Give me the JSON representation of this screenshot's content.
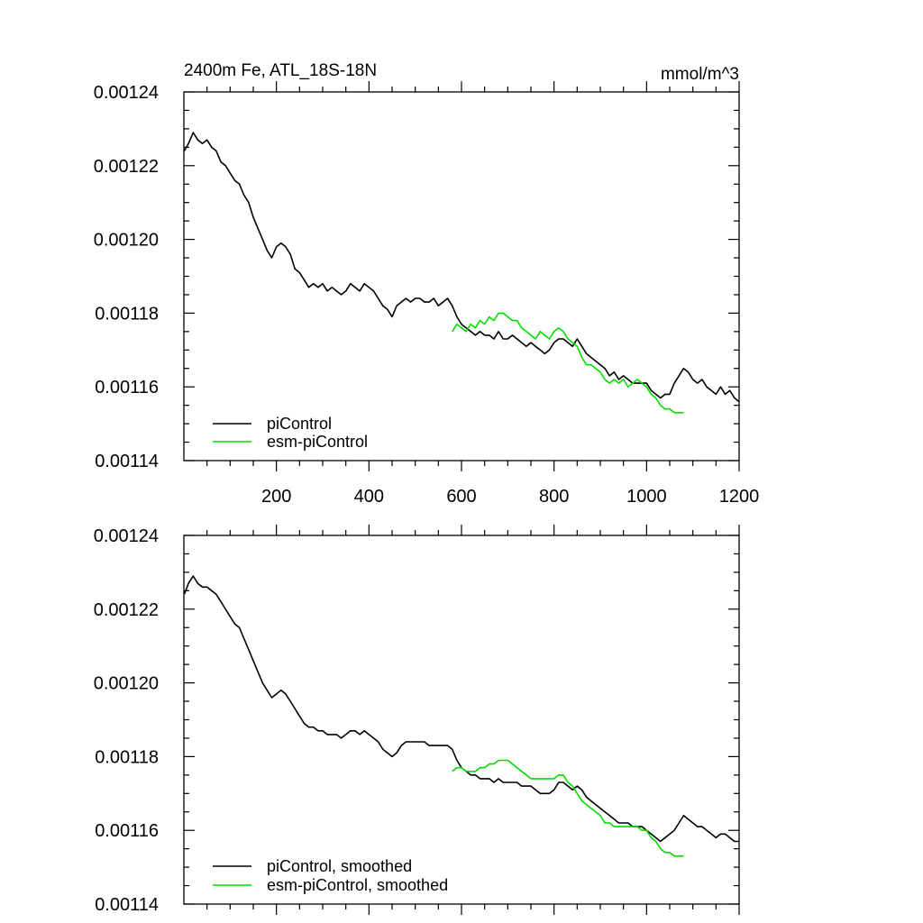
{
  "chart_data": [
    {
      "type": "line",
      "title": "2400m Fe, ATL_18S-18N",
      "units_label": "mmol/m^3",
      "xlabel": "",
      "ylabel": "",
      "xlim": [
        0,
        1200
      ],
      "ylim": [
        0.00114,
        0.00124
      ],
      "x_ticks": [
        200,
        400,
        600,
        800,
        1000,
        1200
      ],
      "x_tick_labels": [
        "200",
        "400",
        "600",
        "800",
        "1000",
        "1200"
      ],
      "y_ticks": [
        0.00114,
        0.00116,
        0.00118,
        0.0012,
        0.00122,
        0.00124
      ],
      "y_tick_labels": [
        "0.00114",
        "0.00116",
        "0.00118",
        "0.00120",
        "0.00122",
        "0.00124"
      ],
      "grid": false,
      "legend_position": "bottom-left",
      "series": [
        {
          "name": "piControl",
          "color": "#000000",
          "x": [
            1,
            10,
            20,
            30,
            40,
            50,
            60,
            70,
            80,
            90,
            100,
            110,
            120,
            130,
            140,
            150,
            160,
            170,
            180,
            190,
            200,
            210,
            220,
            230,
            240,
            250,
            260,
            270,
            280,
            290,
            300,
            310,
            320,
            330,
            340,
            350,
            360,
            370,
            380,
            390,
            400,
            410,
            420,
            430,
            440,
            450,
            460,
            470,
            480,
            490,
            500,
            510,
            520,
            530,
            540,
            550,
            560,
            570,
            580,
            590,
            600,
            610,
            620,
            630,
            640,
            650,
            660,
            670,
            680,
            690,
            700,
            710,
            720,
            730,
            740,
            750,
            760,
            770,
            780,
            790,
            800,
            810,
            820,
            830,
            840,
            850,
            860,
            870,
            880,
            890,
            900,
            910,
            920,
            930,
            940,
            950,
            960,
            970,
            980,
            990,
            1000,
            1010,
            1020,
            1030,
            1040,
            1050,
            1060,
            1070,
            1080,
            1090,
            1100,
            1110,
            1120,
            1130,
            1140,
            1150,
            1160,
            1170,
            1180,
            1190,
            1200
          ],
          "values": [
            0.001224,
            0.001226,
            0.001229,
            0.001227,
            0.001226,
            0.001227,
            0.001225,
            0.001224,
            0.001221,
            0.00122,
            0.001218,
            0.001216,
            0.001215,
            0.001212,
            0.00121,
            0.001206,
            0.001203,
            0.0012,
            0.001197,
            0.001195,
            0.001198,
            0.001199,
            0.001198,
            0.001196,
            0.001192,
            0.001191,
            0.001189,
            0.001187,
            0.001188,
            0.001187,
            0.001188,
            0.001186,
            0.001187,
            0.001186,
            0.001185,
            0.001186,
            0.001188,
            0.001187,
            0.001186,
            0.001188,
            0.001187,
            0.001186,
            0.001184,
            0.001182,
            0.001181,
            0.001179,
            0.001182,
            0.001183,
            0.001184,
            0.001183,
            0.001184,
            0.001184,
            0.001183,
            0.001183,
            0.001184,
            0.001182,
            0.001183,
            0.001184,
            0.001182,
            0.001179,
            0.001177,
            0.001176,
            0.001175,
            0.001174,
            0.001175,
            0.001174,
            0.001174,
            0.001173,
            0.001175,
            0.001173,
            0.001173,
            0.001174,
            0.001173,
            0.001172,
            0.001171,
            0.001172,
            0.001171,
            0.00117,
            0.001169,
            0.00117,
            0.001172,
            0.001173,
            0.001173,
            0.001172,
            0.001171,
            0.001173,
            0.001171,
            0.001169,
            0.001168,
            0.001167,
            0.001166,
            0.001165,
            0.001163,
            0.001164,
            0.001162,
            0.001163,
            0.001162,
            0.001161,
            0.001161,
            0.001161,
            0.001161,
            0.001159,
            0.001158,
            0.001157,
            0.001158,
            0.001158,
            0.001161,
            0.001163,
            0.001165,
            0.001164,
            0.001162,
            0.001161,
            0.001162,
            0.00116,
            0.001159,
            0.001158,
            0.00116,
            0.001158,
            0.001159,
            0.001157,
            0.001156
          ]
        },
        {
          "name": "esm-piControl",
          "color": "#00dd00",
          "x": [
            580,
            590,
            600,
            610,
            620,
            630,
            640,
            650,
            660,
            670,
            680,
            690,
            700,
            710,
            720,
            730,
            740,
            750,
            760,
            770,
            780,
            790,
            800,
            810,
            820,
            830,
            840,
            850,
            860,
            870,
            880,
            890,
            900,
            910,
            920,
            930,
            940,
            950,
            960,
            970,
            980,
            990,
            1000,
            1010,
            1020,
            1030,
            1040,
            1050,
            1060,
            1070,
            1080
          ],
          "values": [
            0.001175,
            0.001177,
            0.001176,
            0.001175,
            0.001177,
            0.001176,
            0.001178,
            0.001177,
            0.001179,
            0.001178,
            0.00118,
            0.00118,
            0.001179,
            0.001178,
            0.001178,
            0.001176,
            0.001175,
            0.001174,
            0.001173,
            0.001175,
            0.001174,
            0.001173,
            0.001175,
            0.001176,
            0.001175,
            0.001173,
            0.001172,
            0.001171,
            0.001168,
            0.001166,
            0.001166,
            0.001165,
            0.001164,
            0.001162,
            0.001161,
            0.001162,
            0.001161,
            0.001162,
            0.00116,
            0.001161,
            0.001162,
            0.001161,
            0.00116,
            0.001158,
            0.001157,
            0.001155,
            0.001154,
            0.001154,
            0.001153,
            0.001153,
            0.001153
          ]
        }
      ]
    },
    {
      "type": "line",
      "title": "",
      "xlabel": "",
      "ylabel": "",
      "xlim": [
        0,
        1200
      ],
      "ylim": [
        0.00114,
        0.00124
      ],
      "x_ticks": [
        200,
        400,
        600,
        800,
        1000,
        1200
      ],
      "x_tick_labels": [],
      "y_ticks": [
        0.00114,
        0.00116,
        0.00118,
        0.0012,
        0.00122,
        0.00124
      ],
      "y_tick_labels": [
        "0.00114",
        "0.00116",
        "0.00118",
        "0.00120",
        "0.00122",
        "0.00124"
      ],
      "grid": false,
      "legend_position": "bottom-left",
      "series": [
        {
          "name": "piControl, smoothed",
          "color": "#000000",
          "x": [
            1,
            10,
            20,
            30,
            40,
            50,
            60,
            70,
            80,
            90,
            100,
            110,
            120,
            130,
            140,
            150,
            160,
            170,
            180,
            190,
            200,
            210,
            220,
            230,
            240,
            250,
            260,
            270,
            280,
            290,
            300,
            310,
            320,
            330,
            340,
            350,
            360,
            370,
            380,
            390,
            400,
            410,
            420,
            430,
            440,
            450,
            460,
            470,
            480,
            490,
            500,
            510,
            520,
            530,
            540,
            550,
            560,
            570,
            580,
            590,
            600,
            610,
            620,
            630,
            640,
            650,
            660,
            670,
            680,
            690,
            700,
            710,
            720,
            730,
            740,
            750,
            760,
            770,
            780,
            790,
            800,
            810,
            820,
            830,
            840,
            850,
            860,
            870,
            880,
            890,
            900,
            910,
            920,
            930,
            940,
            950,
            960,
            970,
            980,
            990,
            1000,
            1010,
            1020,
            1030,
            1040,
            1050,
            1060,
            1070,
            1080,
            1090,
            1100,
            1110,
            1120,
            1130,
            1140,
            1150,
            1160,
            1170,
            1180,
            1190,
            1200
          ],
          "values": [
            0.001224,
            0.001227,
            0.001229,
            0.001227,
            0.001226,
            0.001226,
            0.001225,
            0.001224,
            0.001222,
            0.00122,
            0.001218,
            0.001216,
            0.001215,
            0.001212,
            0.001209,
            0.001206,
            0.001203,
            0.0012,
            0.001198,
            0.001196,
            0.001197,
            0.001198,
            0.001197,
            0.001195,
            0.001193,
            0.001191,
            0.001189,
            0.001188,
            0.001188,
            0.001187,
            0.001187,
            0.001186,
            0.001186,
            0.001186,
            0.001185,
            0.001186,
            0.001187,
            0.001187,
            0.001186,
            0.001187,
            0.001186,
            0.001185,
            0.001184,
            0.001182,
            0.001181,
            0.00118,
            0.001181,
            0.001183,
            0.001184,
            0.001184,
            0.001184,
            0.001184,
            0.001184,
            0.001183,
            0.001183,
            0.001183,
            0.001183,
            0.001183,
            0.001182,
            0.001179,
            0.001177,
            0.001176,
            0.001175,
            0.001175,
            0.001174,
            0.001174,
            0.001174,
            0.001173,
            0.001174,
            0.001173,
            0.001173,
            0.001173,
            0.001173,
            0.001172,
            0.001172,
            0.001172,
            0.001171,
            0.00117,
            0.00117,
            0.00117,
            0.001171,
            0.001173,
            0.001173,
            0.001172,
            0.001171,
            0.001172,
            0.001171,
            0.001169,
            0.001168,
            0.001167,
            0.001166,
            0.001165,
            0.001164,
            0.001163,
            0.001162,
            0.001162,
            0.001162,
            0.001161,
            0.001161,
            0.001161,
            0.00116,
            0.001159,
            0.001158,
            0.001157,
            0.001158,
            0.001159,
            0.00116,
            0.001162,
            0.001164,
            0.001163,
            0.001162,
            0.001161,
            0.001161,
            0.00116,
            0.001159,
            0.001158,
            0.001159,
            0.001159,
            0.001158,
            0.001157,
            0.001157
          ]
        },
        {
          "name": "esm-piControl, smoothed",
          "color": "#00dd00",
          "x": [
            580,
            590,
            600,
            610,
            620,
            630,
            640,
            650,
            660,
            670,
            680,
            690,
            700,
            710,
            720,
            730,
            740,
            750,
            760,
            770,
            780,
            790,
            800,
            810,
            820,
            830,
            840,
            850,
            860,
            870,
            880,
            890,
            900,
            910,
            920,
            930,
            940,
            950,
            960,
            970,
            980,
            990,
            1000,
            1010,
            1020,
            1030,
            1040,
            1050,
            1060,
            1070,
            1080
          ],
          "values": [
            0.001176,
            0.001177,
            0.001177,
            0.001176,
            0.001176,
            0.001176,
            0.001177,
            0.001177,
            0.001178,
            0.001178,
            0.001179,
            0.001179,
            0.001179,
            0.001178,
            0.001177,
            0.001176,
            0.001175,
            0.001174,
            0.001174,
            0.001174,
            0.001174,
            0.001174,
            0.001174,
            0.001175,
            0.001175,
            0.001173,
            0.001172,
            0.00117,
            0.001168,
            0.001167,
            0.001166,
            0.001165,
            0.001164,
            0.001162,
            0.001162,
            0.001161,
            0.001161,
            0.001161,
            0.001161,
            0.001161,
            0.001161,
            0.00116,
            0.00116,
            0.001158,
            0.001157,
            0.001155,
            0.001154,
            0.001154,
            0.001153,
            0.001153,
            0.001153
          ]
        }
      ]
    }
  ]
}
